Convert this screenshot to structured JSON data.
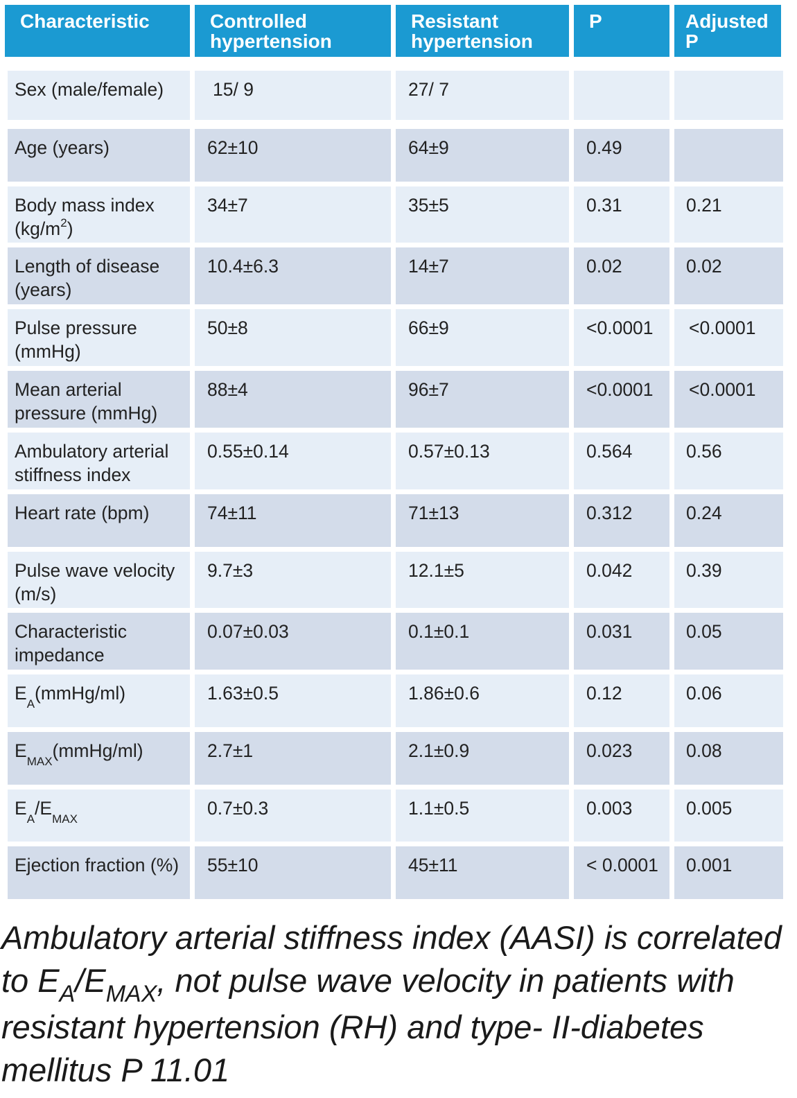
{
  "table": {
    "headers": [
      "Characteristic",
      "Controlled hypertension",
      "Resistant hypertension",
      "P",
      "Adjusted P"
    ],
    "rows": [
      {
        "label": "Sex (male/female)",
        "controlled": "15/ 9",
        "resistant": "27/ 7",
        "p": "",
        "adjusted_p": ""
      },
      {
        "label": "Age (years)",
        "controlled": "62±10",
        "resistant": "64±9",
        "p": "0.49",
        "adjusted_p": ""
      },
      {
        "label_main": "Body mass index (kg/m",
        "label_sup": "2",
        "label_tail": ")",
        "controlled": "34±7",
        "resistant": "35±5",
        "p": "0.31",
        "adjusted_p": "0.21"
      },
      {
        "label": "Length of disease (years)",
        "controlled": "10.4±6.3",
        "resistant": "14±7",
        "p": "0.02",
        "adjusted_p": "0.02"
      },
      {
        "label": "Pulse pressure (mmHg)",
        "controlled": "50±8",
        "resistant": "66±9",
        "p": "<0.0001",
        "adjusted_p": "<0.0001"
      },
      {
        "label": "Mean arterial pressure (mmHg)",
        "controlled": "88±4",
        "resistant": "96±7",
        "p": "<0.0001",
        "adjusted_p": "<0.0001"
      },
      {
        "label": "Ambulatory arterial stiffness index",
        "controlled": "0.55±0.14",
        "resistant": "0.57±0.13",
        "p": "0.564",
        "adjusted_p": "0.56"
      },
      {
        "label": "Heart rate (bpm)",
        "controlled": "74±11",
        "resistant": "71±13",
        "p": "0.312",
        "adjusted_p": "0.24"
      },
      {
        "label": "Pulse wave velocity (m/s)",
        "controlled": "9.7±3",
        "resistant": "12.1±5",
        "p": "0.042",
        "adjusted_p": "0.39"
      },
      {
        "label": "Characteristic impedance",
        "controlled": "0.07±0.03",
        "resistant": "0.1±0.1",
        "p": "0.031",
        "adjusted_p": "0.05"
      },
      {
        "label_main": "E",
        "label_sub": "A",
        "label_tail": "(mmHg/ml)",
        "controlled": "1.63±0.5",
        "resistant": "1.86±0.6",
        "p": "0.12",
        "adjusted_p": "0.06"
      },
      {
        "label_main": "E",
        "label_sub": "MAX",
        "label_tail": "(mmHg/ml)",
        "controlled": "2.7±1",
        "resistant": "2.1±0.9",
        "p": "0.023",
        "adjusted_p": "0.08"
      },
      {
        "label_main": "E",
        "label_sub": "A",
        "label_mid": "/E",
        "label_sub2": "MAX",
        "controlled": "0.7±0.3",
        "resistant": "1.1±0.5",
        "p": "0.003",
        "adjusted_p": "0.005"
      },
      {
        "label": "Ejection fraction (%)",
        "controlled": "55±10",
        "resistant": "45±11",
        "p": "< 0.0001",
        "adjusted_p": "0.001"
      }
    ]
  },
  "caption": {
    "part1": "Ambulatory arterial stiffness index (AASI) is correlated to E",
    "sub1": "A",
    "part2": "/E",
    "sub2": "MAX",
    "part3": ", not pulse wave velocity in patients with resistant hypertension (RH) and type- II-diabetes mellitus P 11.01"
  },
  "colors": {
    "header_bg": "#1b9ad2",
    "row_light": "#e6eef7",
    "row_dark": "#d3dcea"
  }
}
